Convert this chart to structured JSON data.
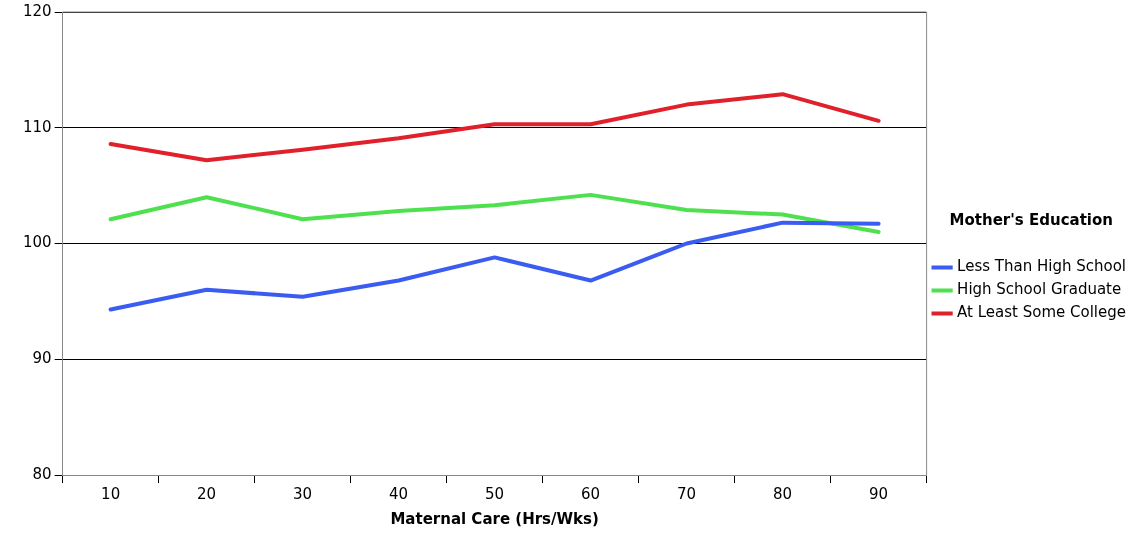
{
  "chart_data": {
    "type": "line",
    "xlabel": "Maternal Care (Hrs/Wks)",
    "legend_title": "Mother's Education",
    "categories": [
      "10",
      "20",
      "30",
      "40",
      "50",
      "60",
      "70",
      "80",
      "90"
    ],
    "series": [
      {
        "name": "Less Than High School",
        "color": "#3b5cf0",
        "values": [
          94.3,
          96.0,
          95.4,
          96.8,
          98.8,
          96.8,
          100.0,
          101.8,
          101.7
        ]
      },
      {
        "name": "High School Graduate",
        "color": "#4fe04f",
        "values": [
          102.1,
          104.0,
          102.1,
          102.8,
          103.3,
          104.2,
          102.9,
          102.5,
          101.0
        ]
      },
      {
        "name": "At Least Some College",
        "color": "#e0202a",
        "values": [
          108.6,
          107.2,
          108.1,
          109.1,
          110.3,
          110.3,
          112.0,
          112.9,
          110.6
        ]
      }
    ],
    "ylim": [
      80,
      120
    ],
    "yticks": [
      80,
      90,
      100,
      110,
      120
    ],
    "grid": "y",
    "legend": "right",
    "marker": "none",
    "line_style": "solid"
  }
}
